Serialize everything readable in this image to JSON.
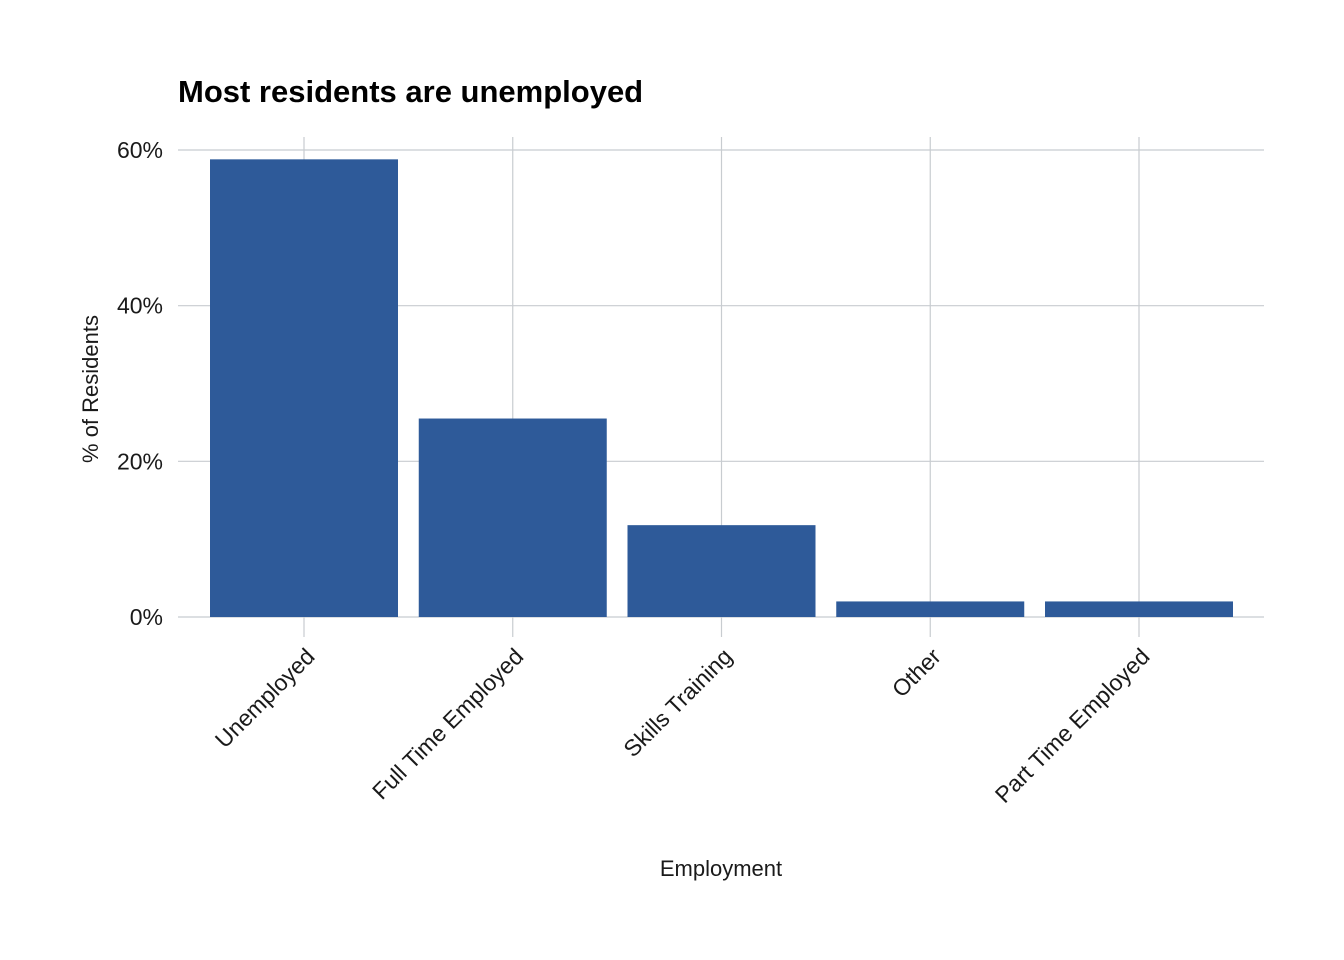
{
  "chart_data": {
    "type": "bar",
    "title": "Most residents are unemployed",
    "xlabel": "Employment",
    "ylabel": "% of Residents",
    "categories": [
      "Unemployed",
      "Full Time Employed",
      "Skills Training",
      "Other",
      "Part Time Employed"
    ],
    "values": [
      58.8,
      25.5,
      11.8,
      2.0,
      2.0
    ],
    "ylim": [
      0,
      60
    ],
    "yticks": [
      0,
      20,
      40,
      60
    ],
    "ytick_labels": [
      "0%",
      "20%",
      "40%",
      "60%"
    ],
    "grid": true,
    "legend": "none",
    "bar_color": "#2e5a99",
    "grid_color": "#c8ccd0"
  }
}
